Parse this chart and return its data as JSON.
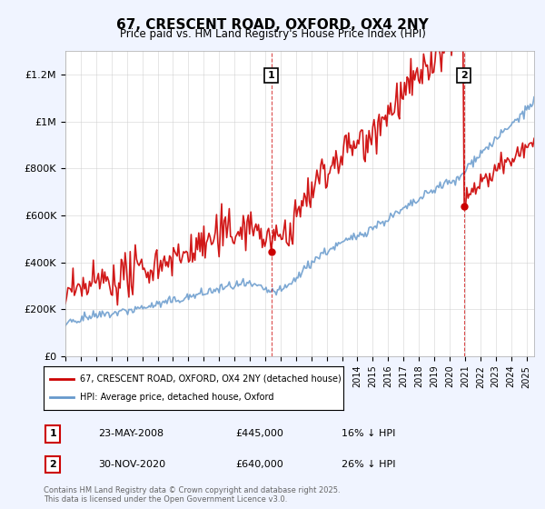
{
  "title": "67, CRESCENT ROAD, OXFORD, OX4 2NY",
  "subtitle": "Price paid vs. HM Land Registry's House Price Index (HPI)",
  "ylabel_ticks": [
    "£0",
    "£200K",
    "£400K",
    "£600K",
    "£800K",
    "£1M",
    "£1.2M"
  ],
  "ytick_values": [
    0,
    200000,
    400000,
    600000,
    800000,
    1000000,
    1200000
  ],
  "ylim": [
    0,
    1300000
  ],
  "xlim_start": 1995.0,
  "xlim_end": 2025.5,
  "hpi_color": "#6699cc",
  "price_color": "#cc0000",
  "background_color": "#f0f4ff",
  "plot_bg_color": "#ffffff",
  "marker1_x": 2008.39,
  "marker1_y": 445000,
  "marker2_x": 2020.92,
  "marker2_y": 640000,
  "marker1_label": "1",
  "marker2_label": "2",
  "marker1_date": "23-MAY-2008",
  "marker1_price": "£445,000",
  "marker1_hpi": "16% ↓ HPI",
  "marker2_date": "30-NOV-2020",
  "marker2_price": "£640,000",
  "marker2_hpi": "26% ↓ HPI",
  "legend_line1": "67, CRESCENT ROAD, OXFORD, OX4 2NY (detached house)",
  "legend_line2": "HPI: Average price, detached house, Oxford",
  "footer": "Contains HM Land Registry data © Crown copyright and database right 2025.\nThis data is licensed under the Open Government Licence v3.0."
}
